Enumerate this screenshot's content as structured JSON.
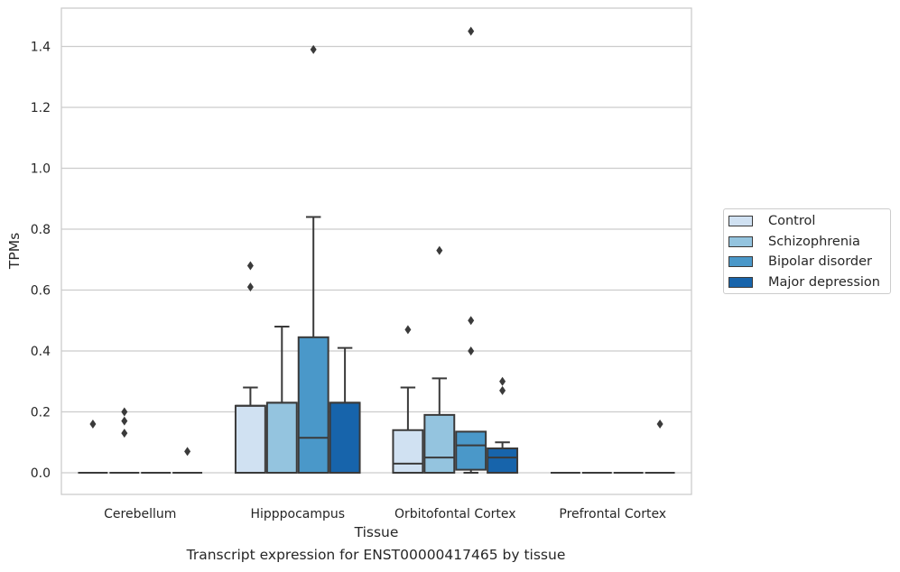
{
  "caption": "Transcript expression for ENST00000417465 by tissue",
  "chart_data": {
    "type": "box",
    "xlabel": "Tissue",
    "ylabel": "TPMs",
    "ylim": [
      -0.07,
      1.53
    ],
    "yticks": [
      0.0,
      0.2,
      0.4,
      0.6,
      0.8,
      1.0,
      1.2,
      1.4
    ],
    "ytick_labels": [
      "0.0",
      "0.2",
      "0.4",
      "0.6",
      "0.8",
      "1.0",
      "1.2",
      "1.4"
    ],
    "grid": "horizontal",
    "legend_placement": "center-right outside",
    "categories": [
      "Cerebellum",
      "Hipppocampus",
      "Orbitofontal Cortex",
      "Prefrontal Cortex"
    ],
    "series": [
      {
        "name": "Control",
        "color": "#d0e1f2",
        "boxes": [
          {
            "min": 0,
            "q1": 0,
            "median": 0,
            "q3": 0,
            "max": 0,
            "outliers": [
              0.16
            ]
          },
          {
            "min": 0,
            "q1": 0,
            "median": 0.22,
            "q3": 0.22,
            "max": 0.28,
            "outliers": [
              0.61,
              0.68
            ]
          },
          {
            "min": 0,
            "q1": 0,
            "median": 0.03,
            "q3": 0.14,
            "max": 0.28,
            "outliers": [
              0.47
            ]
          },
          {
            "min": 0,
            "q1": 0,
            "median": 0,
            "q3": 0,
            "max": 0,
            "outliers": []
          }
        ]
      },
      {
        "name": "Schizophrenia",
        "color": "#94c4df",
        "boxes": [
          {
            "min": 0,
            "q1": 0,
            "median": 0,
            "q3": 0,
            "max": 0,
            "outliers": [
              0.13,
              0.17,
              0.2
            ]
          },
          {
            "min": 0,
            "q1": 0,
            "median": 0.23,
            "q3": 0.23,
            "max": 0.48,
            "outliers": []
          },
          {
            "min": 0,
            "q1": 0,
            "median": 0.05,
            "q3": 0.19,
            "max": 0.31,
            "outliers": [
              0.73
            ]
          },
          {
            "min": 0,
            "q1": 0,
            "median": 0,
            "q3": 0,
            "max": 0,
            "outliers": []
          }
        ]
      },
      {
        "name": "Bipolar disorder",
        "color": "#4a98c9",
        "boxes": [
          {
            "min": 0,
            "q1": 0,
            "median": 0,
            "q3": 0,
            "max": 0,
            "outliers": []
          },
          {
            "min": 0,
            "q1": 0,
            "median": 0.115,
            "q3": 0.445,
            "max": 0.84,
            "outliers": [
              1.39
            ]
          },
          {
            "min": 0,
            "q1": 0.01,
            "median": 0.09,
            "q3": 0.135,
            "max": 0.135,
            "outliers": [
              0.4,
              0.5,
              1.45
            ]
          },
          {
            "min": 0,
            "q1": 0,
            "median": 0,
            "q3": 0,
            "max": 0,
            "outliers": []
          }
        ]
      },
      {
        "name": "Major depression",
        "color": "#1764ab",
        "boxes": [
          {
            "min": 0,
            "q1": 0,
            "median": 0,
            "q3": 0,
            "max": 0,
            "outliers": [
              0.07
            ]
          },
          {
            "min": 0,
            "q1": 0,
            "median": 0.23,
            "q3": 0.23,
            "max": 0.41,
            "outliers": []
          },
          {
            "min": 0,
            "q1": 0,
            "median": 0.05,
            "q3": 0.08,
            "max": 0.1,
            "outliers": [
              0.27,
              0.3
            ]
          },
          {
            "min": 0,
            "q1": 0,
            "median": 0,
            "q3": 0,
            "max": 0,
            "outliers": [
              0.16
            ]
          }
        ]
      }
    ]
  }
}
